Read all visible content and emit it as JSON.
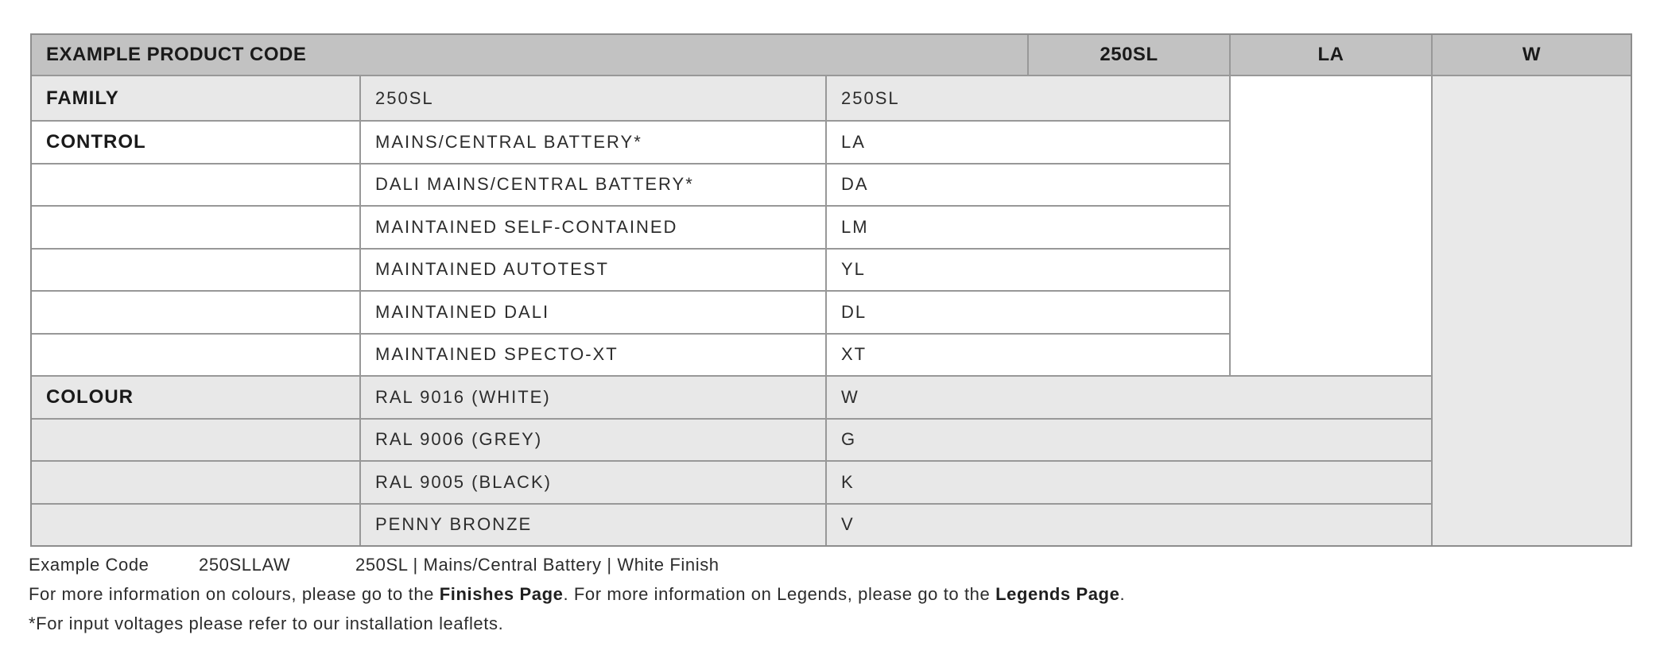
{
  "table": {
    "header": {
      "title": "EXAMPLE PRODUCT CODE",
      "code_columns": [
        "250SL",
        "LA",
        "W"
      ]
    },
    "sections": [
      {
        "label": "FAMILY",
        "rows": [
          {
            "description": "250SL",
            "code": "250SL"
          }
        ]
      },
      {
        "label": "CONTROL",
        "rows": [
          {
            "description": "MAINS/CENTRAL BATTERY*",
            "code": "LA"
          },
          {
            "description": "DALI MAINS/CENTRAL BATTERY*",
            "code": "DA"
          },
          {
            "description": "MAINTAINED SELF-CONTAINED",
            "code": "LM"
          },
          {
            "description": "MAINTAINED AUTOTEST",
            "code": "YL"
          },
          {
            "description": "MAINTAINED DALI",
            "code": "DL"
          },
          {
            "description": "MAINTAINED SPECTO-XT",
            "code": "XT"
          }
        ]
      },
      {
        "label": "COLOUR",
        "rows": [
          {
            "description": "RAL 9016 (WHITE)",
            "code": "W"
          },
          {
            "description": "RAL 9006 (GREY)",
            "code": "G"
          },
          {
            "description": "RAL 9005 (BLACK)",
            "code": "K"
          },
          {
            "description": "PENNY BRONZE",
            "code": "V"
          }
        ]
      }
    ]
  },
  "footer": {
    "example_label": "Example Code",
    "example_code": "250SLLAW",
    "example_breakdown": "250SL | Mains/Central Battery | White Finish",
    "info": {
      "part1": "For more information on colours, please go to the ",
      "bold1": "Finishes Page",
      "part2": ". For more information on Legends, please go to the ",
      "bold2": "Legends Page",
      "part3": "."
    },
    "note": "*For input voltages please refer to our installation leaflets."
  },
  "colors": {
    "header_bg": "#c2c2c2",
    "shaded_row_bg": "#e8e8e8",
    "border": "#989898",
    "text": "#2c2c2c"
  }
}
